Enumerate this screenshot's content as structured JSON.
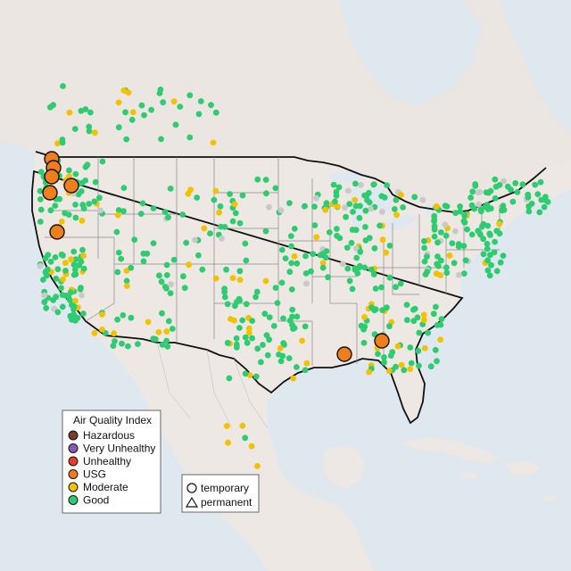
{
  "legend_aqi": {
    "title": "Air Quality Index",
    "items": [
      {
        "label": "Hazardous",
        "color": "#7e3b2a"
      },
      {
        "label": "Very Unhealthy",
        "color": "#8c5ab4"
      },
      {
        "label": "Unhealthy",
        "color": "#e63c2a"
      },
      {
        "label": "USG",
        "color": "#ef7f1a"
      },
      {
        "label": "Moderate",
        "color": "#f2c200"
      },
      {
        "label": "Good",
        "color": "#2ecc71"
      }
    ]
  },
  "legend_type": {
    "items": [
      {
        "label": "temporary",
        "shape": "circle"
      },
      {
        "label": "permanent",
        "shape": "triangle"
      }
    ]
  },
  "colors": {
    "water": "#dfe7ef",
    "land": "#ece7e2",
    "land_other": "#e6e1dc",
    "good": "#2ecc71",
    "moderate": "#f2c200",
    "usg": "#ef7f1a",
    "unhealthy": "#e63c2a",
    "no_data": "#c9c9c9"
  }
}
